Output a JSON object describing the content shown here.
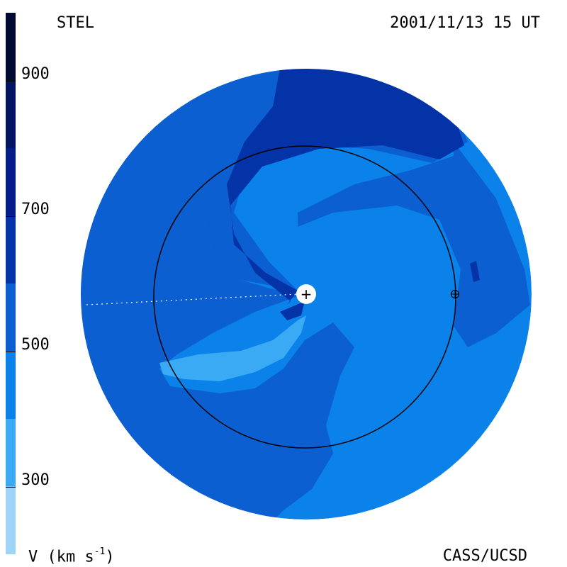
{
  "header": {
    "instrument": "STEL",
    "timestamp": "2001/11/13 15 UT"
  },
  "footer": {
    "unit_label": "V (km s",
    "unit_exponent": "-1",
    "unit_close": ")",
    "credit": "CASS/UCSD"
  },
  "colorbar": {
    "min": 200,
    "max": 1000,
    "ticks": [
      {
        "label": "900",
        "value": 900
      },
      {
        "label": "700",
        "value": 700
      },
      {
        "label": "500",
        "value": 500
      },
      {
        "label": "300",
        "value": 300
      }
    ],
    "bands": [
      {
        "from": 200,
        "to": 300,
        "color": "#9dd4f7"
      },
      {
        "from": 300,
        "to": 400,
        "color": "#3aaaf5"
      },
      {
        "from": 400,
        "to": 500,
        "color": "#0a82ea"
      },
      {
        "from": 500,
        "to": 600,
        "color": "#0c5fd0"
      },
      {
        "from": 600,
        "to": 700,
        "color": "#0333a6"
      },
      {
        "from": 700,
        "to": 800,
        "color": "#041d88"
      },
      {
        "from": 800,
        "to": 900,
        "color": "#031460"
      },
      {
        "from": 900,
        "to": 1000,
        "color": "#010a33"
      }
    ]
  },
  "map": {
    "background_color": "#0a82ea",
    "mid_color": "#0c5fd0",
    "high_color": "#0333a6",
    "low_color": "#3aaaf5",
    "earth_orbit_color": "#000000",
    "sun_symbol": "+",
    "earth_symbol": "⊕"
  }
}
